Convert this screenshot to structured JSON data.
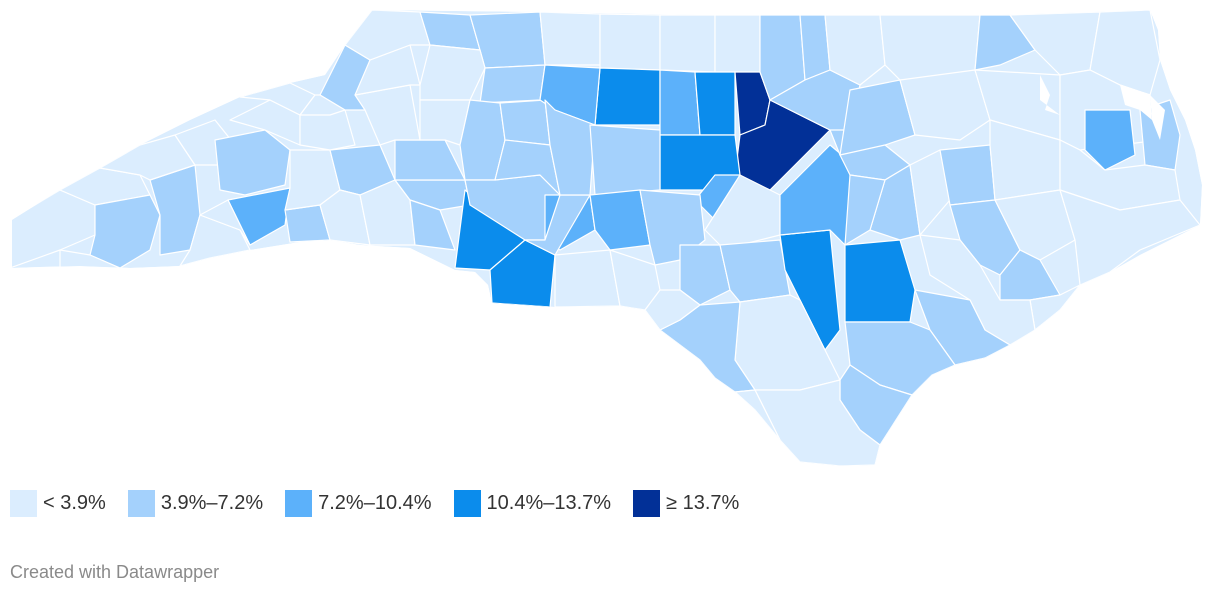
{
  "legend": {
    "items": [
      {
        "label": "< 3.9%",
        "color": "#dbedfe"
      },
      {
        "label": "3.9%–7.2%",
        "color": "#a4d1fc"
      },
      {
        "label": "7.2%–10.4%",
        "color": "#5cb1fa"
      },
      {
        "label": "10.4%–13.7%",
        "color": "#0b8cec"
      },
      {
        "label": "≥ 13.7%",
        "color": "#023097"
      }
    ]
  },
  "credit": "Created with Datawrapper",
  "colors": {
    "background": "#ffffff",
    "border": "#ffffff",
    "credit": "#8a8a8a"
  }
}
